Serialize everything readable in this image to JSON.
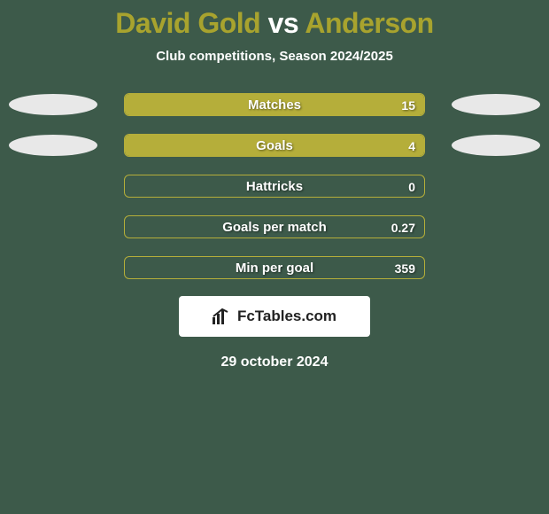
{
  "title": {
    "player1": "David Gold",
    "vs": "vs",
    "player2": "Anderson",
    "player1_color": "#a8a32e",
    "player2_color": "#a8a32e",
    "vs_color": "#ffffff"
  },
  "subtitle": "Club competitions, Season 2024/2025",
  "background_color": "#3d5a4a",
  "bar_track_border": "#b5ae3a",
  "bar_fill_color": "#b5ae3a",
  "badge_left_color": "#e8e8e8",
  "badge_right_color": "#e8e8e8",
  "rows": [
    {
      "label": "Matches",
      "value": "15",
      "fill_pct": 100,
      "show_left_badge": true,
      "show_right_badge": true
    },
    {
      "label": "Goals",
      "value": "4",
      "fill_pct": 100,
      "show_left_badge": true,
      "show_right_badge": true
    },
    {
      "label": "Hattricks",
      "value": "0",
      "fill_pct": 0,
      "show_left_badge": false,
      "show_right_badge": false
    },
    {
      "label": "Goals per match",
      "value": "0.27",
      "fill_pct": 0,
      "show_left_badge": false,
      "show_right_badge": false
    },
    {
      "label": "Min per goal",
      "value": "359",
      "fill_pct": 0,
      "show_left_badge": false,
      "show_right_badge": false
    }
  ],
  "brand": "FcTables.com",
  "date": "29 october 2024"
}
